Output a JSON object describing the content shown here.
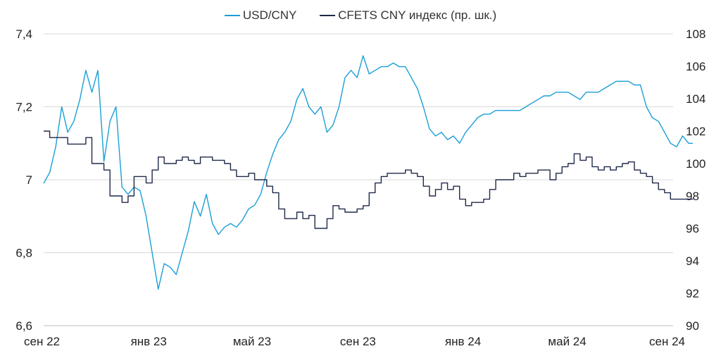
{
  "chart_data": {
    "type": "line",
    "title": "",
    "xlabel": "",
    "ylabel": "",
    "x_ticks": [
      "сен 22",
      "янв 23",
      "май 23",
      "сен 23",
      "янв 24",
      "май 24",
      "сен 24"
    ],
    "y_left": {
      "min": 6.6,
      "max": 7.4,
      "ticks": [
        "6,6",
        "6,8",
        "7",
        "7,2",
        "7,4"
      ]
    },
    "y_right": {
      "min": 90,
      "max": 108,
      "ticks": [
        "90",
        "92",
        "94",
        "96",
        "98",
        "100",
        "102",
        "104",
        "106",
        "108"
      ]
    },
    "grid": true,
    "legend_position": "top-center",
    "series": [
      {
        "name": "USD/CNY",
        "axis": "left",
        "color": "#1a9fd6",
        "points": [
          [
            "2022-09-01",
            6.99
          ],
          [
            "2022-09-08",
            7.02
          ],
          [
            "2022-09-15",
            7.09
          ],
          [
            "2022-09-22",
            7.2
          ],
          [
            "2022-09-29",
            7.13
          ],
          [
            "2022-10-06",
            7.16
          ],
          [
            "2022-10-13",
            7.22
          ],
          [
            "2022-10-20",
            7.3
          ],
          [
            "2022-10-27",
            7.24
          ],
          [
            "2022-11-03",
            7.3
          ],
          [
            "2022-11-10",
            7.05
          ],
          [
            "2022-11-17",
            7.16
          ],
          [
            "2022-11-24",
            7.2
          ],
          [
            "2022-12-01",
            6.98
          ],
          [
            "2022-12-08",
            6.96
          ],
          [
            "2022-12-15",
            6.98
          ],
          [
            "2022-12-22",
            6.97
          ],
          [
            "2022-12-29",
            6.9
          ],
          [
            "2023-01-05",
            6.8
          ],
          [
            "2023-01-12",
            6.7
          ],
          [
            "2023-01-19",
            6.77
          ],
          [
            "2023-01-26",
            6.76
          ],
          [
            "2023-02-02",
            6.74
          ],
          [
            "2023-02-09",
            6.8
          ],
          [
            "2023-02-16",
            6.86
          ],
          [
            "2023-02-23",
            6.94
          ],
          [
            "2023-03-02",
            6.9
          ],
          [
            "2023-03-09",
            6.96
          ],
          [
            "2023-03-16",
            6.88
          ],
          [
            "2023-03-23",
            6.85
          ],
          [
            "2023-03-30",
            6.87
          ],
          [
            "2023-04-06",
            6.88
          ],
          [
            "2023-04-13",
            6.87
          ],
          [
            "2023-04-20",
            6.89
          ],
          [
            "2023-04-27",
            6.92
          ],
          [
            "2023-05-04",
            6.93
          ],
          [
            "2023-05-11",
            6.96
          ],
          [
            "2023-05-18",
            7.02
          ],
          [
            "2023-05-25",
            7.07
          ],
          [
            "2023-06-01",
            7.11
          ],
          [
            "2023-06-08",
            7.13
          ],
          [
            "2023-06-15",
            7.16
          ],
          [
            "2023-06-22",
            7.22
          ],
          [
            "2023-06-29",
            7.25
          ],
          [
            "2023-07-06",
            7.2
          ],
          [
            "2023-07-13",
            7.18
          ],
          [
            "2023-07-20",
            7.2
          ],
          [
            "2023-07-27",
            7.13
          ],
          [
            "2023-08-03",
            7.15
          ],
          [
            "2023-08-10",
            7.2
          ],
          [
            "2023-08-17",
            7.28
          ],
          [
            "2023-08-24",
            7.3
          ],
          [
            "2023-08-31",
            7.28
          ],
          [
            "2023-09-07",
            7.34
          ],
          [
            "2023-09-14",
            7.29
          ],
          [
            "2023-09-21",
            7.3
          ],
          [
            "2023-09-28",
            7.31
          ],
          [
            "2023-10-05",
            7.31
          ],
          [
            "2023-10-12",
            7.32
          ],
          [
            "2023-10-19",
            7.31
          ],
          [
            "2023-10-26",
            7.31
          ],
          [
            "2023-11-02",
            7.28
          ],
          [
            "2023-11-09",
            7.25
          ],
          [
            "2023-11-16",
            7.2
          ],
          [
            "2023-11-23",
            7.14
          ],
          [
            "2023-11-30",
            7.12
          ],
          [
            "2023-12-07",
            7.13
          ],
          [
            "2023-12-14",
            7.11
          ],
          [
            "2023-12-21",
            7.12
          ],
          [
            "2023-12-28",
            7.1
          ],
          [
            "2024-01-04",
            7.13
          ],
          [
            "2024-01-11",
            7.15
          ],
          [
            "2024-01-18",
            7.17
          ],
          [
            "2024-01-25",
            7.18
          ],
          [
            "2024-02-01",
            7.18
          ],
          [
            "2024-02-08",
            7.19
          ],
          [
            "2024-02-15",
            7.19
          ],
          [
            "2024-02-22",
            7.19
          ],
          [
            "2024-02-29",
            7.19
          ],
          [
            "2024-03-07",
            7.19
          ],
          [
            "2024-03-14",
            7.2
          ],
          [
            "2024-03-21",
            7.21
          ],
          [
            "2024-03-28",
            7.22
          ],
          [
            "2024-04-04",
            7.23
          ],
          [
            "2024-04-11",
            7.23
          ],
          [
            "2024-04-18",
            7.24
          ],
          [
            "2024-04-25",
            7.24
          ],
          [
            "2024-05-02",
            7.24
          ],
          [
            "2024-05-09",
            7.23
          ],
          [
            "2024-05-16",
            7.22
          ],
          [
            "2024-05-23",
            7.24
          ],
          [
            "2024-05-30",
            7.24
          ],
          [
            "2024-06-06",
            7.24
          ],
          [
            "2024-06-13",
            7.25
          ],
          [
            "2024-06-20",
            7.26
          ],
          [
            "2024-06-27",
            7.27
          ],
          [
            "2024-07-04",
            7.27
          ],
          [
            "2024-07-11",
            7.27
          ],
          [
            "2024-07-18",
            7.26
          ],
          [
            "2024-07-25",
            7.26
          ],
          [
            "2024-08-01",
            7.2
          ],
          [
            "2024-08-08",
            7.17
          ],
          [
            "2024-08-15",
            7.16
          ],
          [
            "2024-08-22",
            7.13
          ],
          [
            "2024-08-29",
            7.1
          ],
          [
            "2024-09-05",
            7.09
          ],
          [
            "2024-09-12",
            7.12
          ],
          [
            "2024-09-19",
            7.1
          ],
          [
            "2024-09-24",
            7.1
          ]
        ]
      },
      {
        "name": "CFETS CNY индекс (пр. шк.)",
        "axis": "right",
        "color": "#1f2a4a",
        "points": [
          [
            "2022-09-01",
            102.0
          ],
          [
            "2022-09-08",
            101.6
          ],
          [
            "2022-09-29",
            101.2
          ],
          [
            "2022-10-20",
            101.6
          ],
          [
            "2022-10-27",
            100.0
          ],
          [
            "2022-11-10",
            99.6
          ],
          [
            "2022-11-17",
            98.0
          ],
          [
            "2022-12-01",
            97.6
          ],
          [
            "2022-12-08",
            98.0
          ],
          [
            "2022-12-15",
            99.2
          ],
          [
            "2022-12-29",
            98.8
          ],
          [
            "2023-01-05",
            99.6
          ],
          [
            "2023-01-12",
            100.4
          ],
          [
            "2023-01-19",
            100.0
          ],
          [
            "2023-02-02",
            100.2
          ],
          [
            "2023-02-09",
            100.4
          ],
          [
            "2023-02-16",
            100.2
          ],
          [
            "2023-02-23",
            100.0
          ],
          [
            "2023-03-02",
            100.4
          ],
          [
            "2023-03-16",
            100.2
          ],
          [
            "2023-03-30",
            100.0
          ],
          [
            "2023-04-06",
            99.6
          ],
          [
            "2023-04-13",
            99.2
          ],
          [
            "2023-04-27",
            99.4
          ],
          [
            "2023-05-04",
            99.0
          ],
          [
            "2023-05-18",
            98.6
          ],
          [
            "2023-05-25",
            98.2
          ],
          [
            "2023-06-01",
            97.2
          ],
          [
            "2023-06-08",
            96.6
          ],
          [
            "2023-06-22",
            97.0
          ],
          [
            "2023-06-29",
            96.6
          ],
          [
            "2023-07-06",
            96.8
          ],
          [
            "2023-07-13",
            96.0
          ],
          [
            "2023-07-27",
            96.6
          ],
          [
            "2023-08-03",
            97.4
          ],
          [
            "2023-08-10",
            97.2
          ],
          [
            "2023-08-17",
            97.0
          ],
          [
            "2023-08-31",
            97.2
          ],
          [
            "2023-09-07",
            97.4
          ],
          [
            "2023-09-14",
            98.2
          ],
          [
            "2023-09-21",
            98.8
          ],
          [
            "2023-09-28",
            99.2
          ],
          [
            "2023-10-05",
            99.4
          ],
          [
            "2023-10-19",
            99.4
          ],
          [
            "2023-10-26",
            99.6
          ],
          [
            "2023-11-02",
            99.4
          ],
          [
            "2023-11-09",
            99.2
          ],
          [
            "2023-11-16",
            98.6
          ],
          [
            "2023-11-23",
            98.0
          ],
          [
            "2023-11-30",
            98.4
          ],
          [
            "2023-12-07",
            98.8
          ],
          [
            "2023-12-14",
            98.4
          ],
          [
            "2023-12-21",
            98.6
          ],
          [
            "2023-12-28",
            97.8
          ],
          [
            "2024-01-04",
            97.4
          ],
          [
            "2024-01-11",
            97.6
          ],
          [
            "2024-01-25",
            97.8
          ],
          [
            "2024-02-01",
            98.4
          ],
          [
            "2024-02-08",
            99.0
          ],
          [
            "2024-02-22",
            99.0
          ],
          [
            "2024-02-29",
            99.4
          ],
          [
            "2024-03-07",
            99.2
          ],
          [
            "2024-03-14",
            99.4
          ],
          [
            "2024-03-28",
            99.6
          ],
          [
            "2024-04-04",
            99.6
          ],
          [
            "2024-04-11",
            99.0
          ],
          [
            "2024-04-18",
            99.4
          ],
          [
            "2024-04-25",
            99.8
          ],
          [
            "2024-05-02",
            100.0
          ],
          [
            "2024-05-09",
            100.6
          ],
          [
            "2024-05-16",
            100.2
          ],
          [
            "2024-05-23",
            100.4
          ],
          [
            "2024-05-30",
            99.8
          ],
          [
            "2024-06-06",
            99.6
          ],
          [
            "2024-06-13",
            99.8
          ],
          [
            "2024-06-20",
            99.6
          ],
          [
            "2024-06-27",
            99.8
          ],
          [
            "2024-07-04",
            100.0
          ],
          [
            "2024-07-11",
            100.1
          ],
          [
            "2024-07-18",
            99.6
          ],
          [
            "2024-07-25",
            99.4
          ],
          [
            "2024-08-01",
            99.2
          ],
          [
            "2024-08-08",
            98.8
          ],
          [
            "2024-08-15",
            98.4
          ],
          [
            "2024-08-22",
            98.2
          ],
          [
            "2024-08-29",
            97.8
          ],
          [
            "2024-09-05",
            97.8
          ],
          [
            "2024-09-24",
            97.8
          ]
        ]
      }
    ]
  }
}
